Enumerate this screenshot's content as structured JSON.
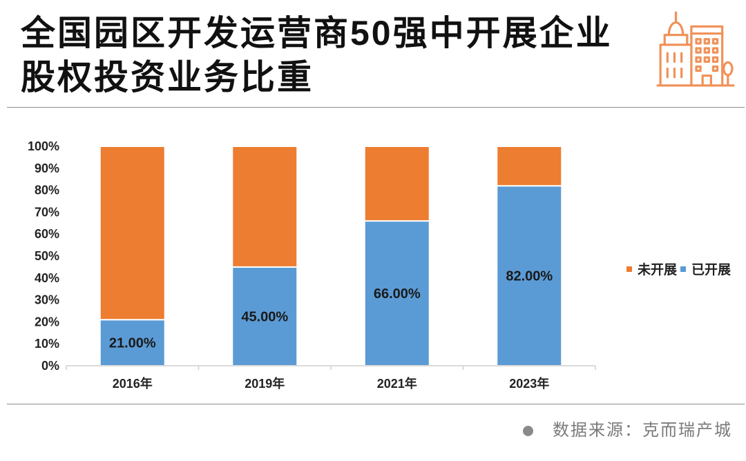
{
  "colors": {
    "icon": "#F0925A",
    "source_dot": "#8A8A8A"
  },
  "icons": {
    "header": "city-buildings-icon",
    "source_bullet": "dot-icon"
  },
  "chart_data": {
    "type": "bar",
    "stacked": true,
    "title_lines": [
      "全国园区开发运营商50强中开展企业",
      "股权投资业务比重"
    ],
    "categories": [
      "2016年",
      "2019年",
      "2021年",
      "2023年"
    ],
    "series": [
      {
        "name": "已开展",
        "color": "#5B9BD5",
        "values": [
          21,
          45,
          66,
          82
        ],
        "labels": [
          "21.00%",
          "45.00%",
          "66.00%",
          "82.00%"
        ]
      },
      {
        "name": "未开展",
        "color": "#ED7D31",
        "values": [
          79,
          55,
          34,
          18
        ]
      }
    ],
    "ylim": [
      0,
      100
    ],
    "yticks": [
      0,
      10,
      20,
      30,
      40,
      50,
      60,
      70,
      80,
      90,
      100
    ],
    "ytick_labels": [
      "0%",
      "10%",
      "20%",
      "30%",
      "40%",
      "50%",
      "60%",
      "70%",
      "80%",
      "90%",
      "100%"
    ],
    "grid": false,
    "legend": "right"
  },
  "source": {
    "text": "数据来源：克而瑞产城"
  }
}
